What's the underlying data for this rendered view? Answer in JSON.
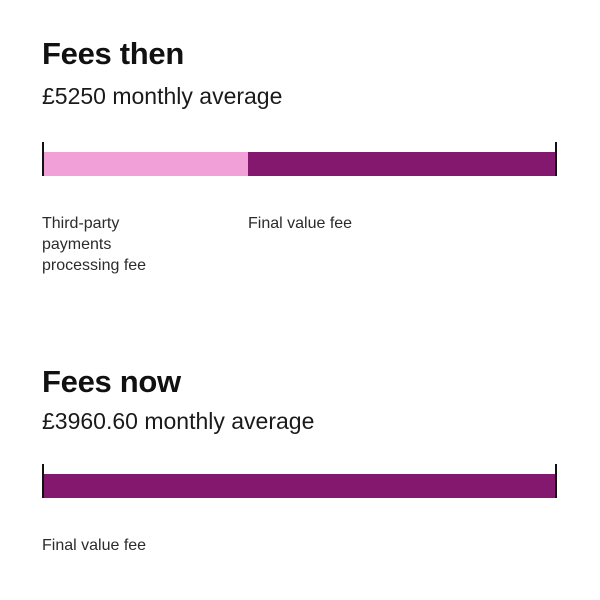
{
  "colors": {
    "final_value_fee": "#84186f",
    "third_party_fee": "#f2a1d8",
    "tick": "#111111"
  },
  "chart_data": [
    {
      "type": "bar",
      "orientation": "horizontal-stacked",
      "title": "Fees then",
      "subtitle": "£5250 monthly average",
      "series": [
        {
          "name": "Third-party payments processing fee",
          "value": 0.4,
          "color": "#f2a1d8"
        },
        {
          "name": "Final value fee",
          "value": 0.6,
          "color": "#84186f"
        }
      ],
      "grid": false,
      "legend": "below"
    },
    {
      "type": "bar",
      "orientation": "horizontal-stacked",
      "title": "Fees now",
      "subtitle": "£3960.60 monthly average",
      "series": [
        {
          "name": "Final value fee",
          "value": 1.0,
          "color": "#84186f"
        }
      ],
      "grid": false,
      "legend": "below"
    }
  ]
}
